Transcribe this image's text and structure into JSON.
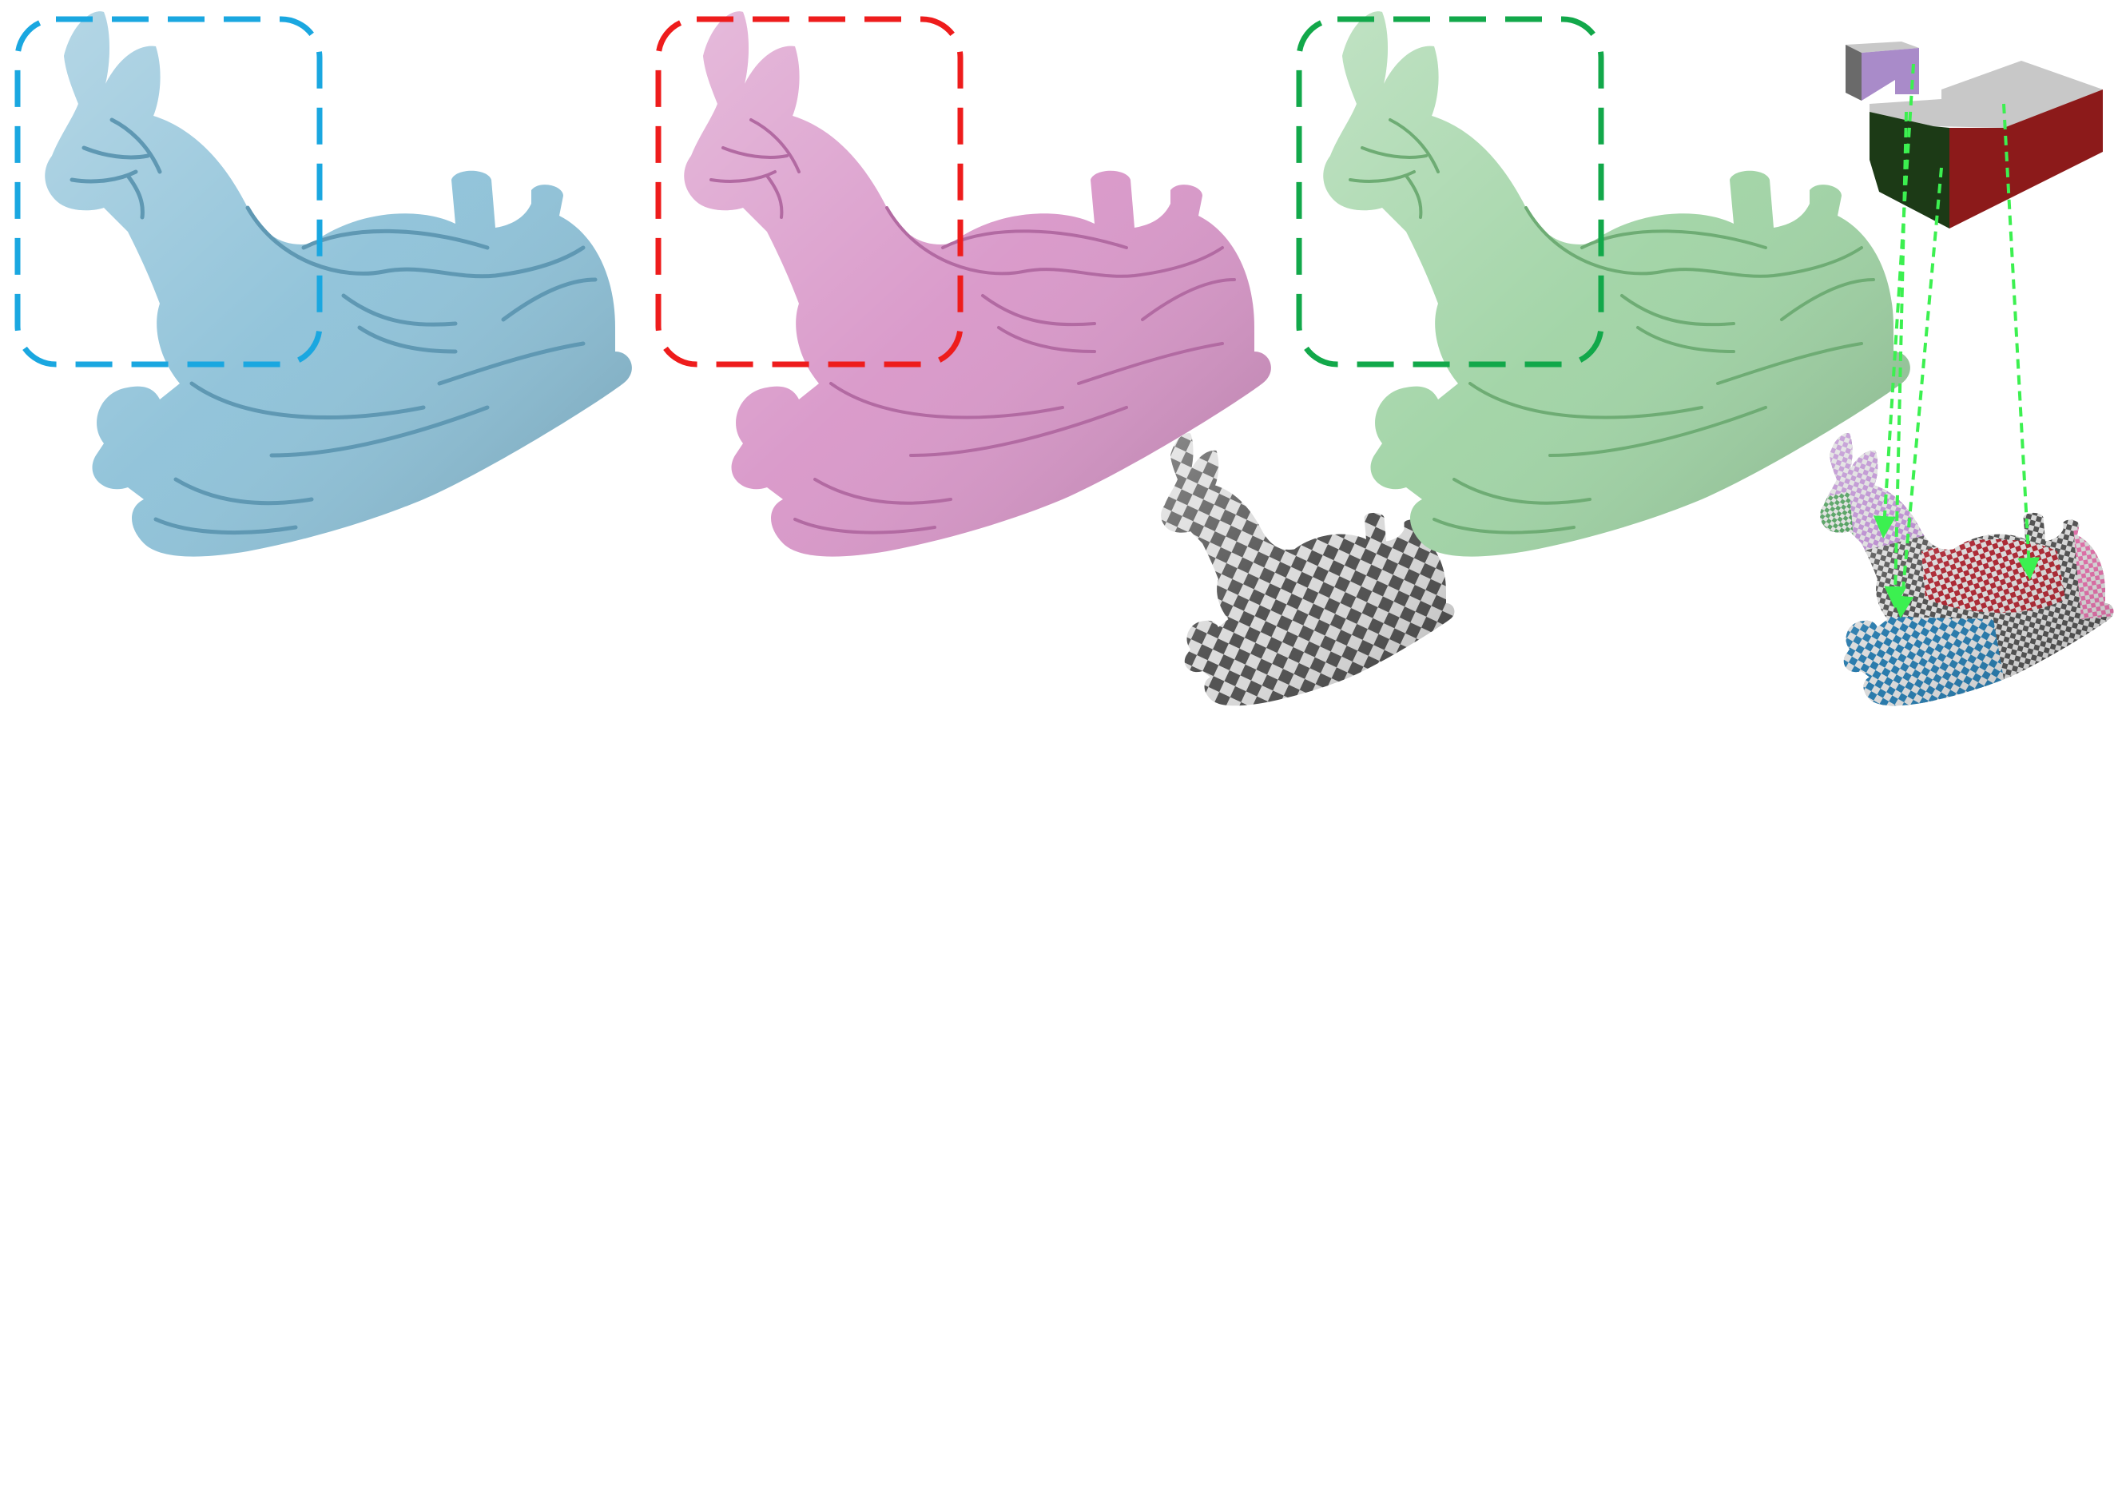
{
  "figure": {
    "panels": [
      {
        "id": "blue-mesh",
        "fill": "#8dc1d8",
        "shade": "#5f98b3",
        "highlight": "#b9dbea",
        "frame_color": "#1aa7e0"
      },
      {
        "id": "pink-mesh",
        "fill": "#d896c8",
        "shade": "#b26aa2",
        "highlight": "#efc2e4",
        "frame_color": "#ee1c1c"
      },
      {
        "id": "green-mesh",
        "fill": "#9fd3a4",
        "shade": "#6eac74",
        "highlight": "#cbeccd",
        "frame_color": "#12a84a"
      }
    ],
    "checker_colors": {
      "light": "#d9d9d9",
      "dark": "#4a4a4a",
      "purple": "#b07cc8",
      "red": "#a81e2a",
      "blue": "#1e74a8",
      "green": "#2a8a3a",
      "pink": "#e06aa6"
    },
    "atlas_colors": {
      "top": "#c8c8c8",
      "purple": "#a98bc9",
      "dark_green": "#1c3a16",
      "red": "#8c1a1a",
      "shadow": "#6a6a6a"
    },
    "arrow_color": "#3cf050"
  }
}
